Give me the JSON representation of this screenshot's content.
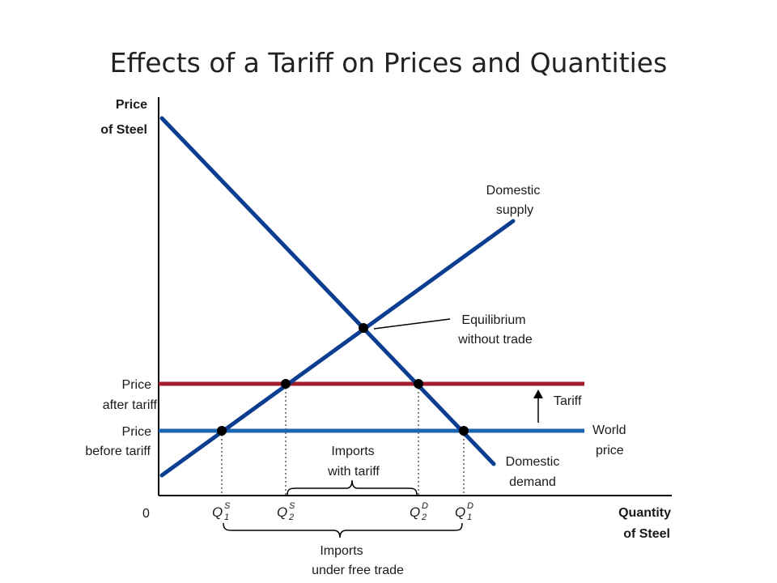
{
  "title": "Effects of a Tariff on Prices and Quantities",
  "axes": {
    "y_label_line1": "Price",
    "y_label_line2": "of Steel",
    "x_label_line1": "Quantity",
    "x_label_line2": "of Steel",
    "origin": "0"
  },
  "curves": {
    "supply_line1": "Domestic",
    "supply_line2": "supply",
    "demand_line1": "Domestic",
    "demand_line2": "demand",
    "world_line1": "World",
    "world_line2": "price"
  },
  "price_labels": {
    "after_line1": "Price",
    "after_line2": "after tariff",
    "before_line1": "Price",
    "before_line2": "before tariff"
  },
  "annotations": {
    "equilibrium_line1": "Equilibrium",
    "equilibrium_line2": "without trade",
    "tariff": "Tariff",
    "imports_tariff_line1": "Imports",
    "imports_tariff_line2": "with tariff",
    "imports_free_line1": "Imports",
    "imports_free_line2": "under free trade"
  },
  "quantity_ticks": {
    "q_letter": "Q",
    "q1s_sup": "S",
    "q1s_sub": "1",
    "q2s_sup": "S",
    "q2s_sub": "2",
    "q2d_sup": "D",
    "q2d_sub": "2",
    "q1d_sup": "D",
    "q1d_sub": "1"
  },
  "colors": {
    "supply_demand": "#0b3d91",
    "world_price": "#1a66b3",
    "tariff_price": "#a31c2b",
    "axis": "#000000"
  }
}
